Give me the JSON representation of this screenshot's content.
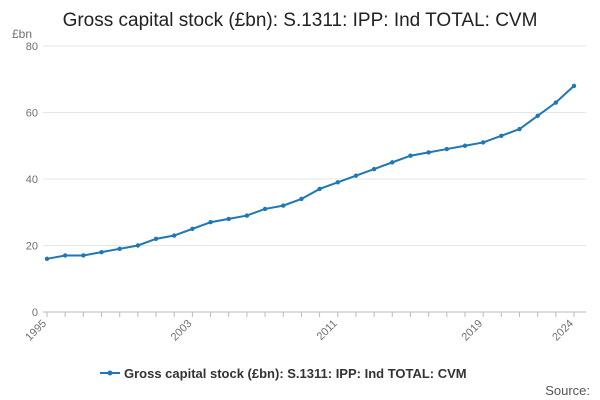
{
  "chart_data": {
    "type": "line",
    "title": "Gross capital stock (£bn): S.1311: IPP: Ind TOTAL: CVM",
    "y_unit_label": "£bn",
    "xlabel": "",
    "ylabel": "£bn",
    "ylim": [
      0,
      80
    ],
    "y_ticks": [
      "0",
      "20",
      "40",
      "60",
      "80"
    ],
    "x_tick_labels": [
      "1995",
      "2003",
      "2011",
      "2019",
      "2024"
    ],
    "x": [
      1995,
      1996,
      1997,
      1998,
      1999,
      2000,
      2001,
      2002,
      2003,
      2004,
      2005,
      2006,
      2007,
      2008,
      2009,
      2010,
      2011,
      2012,
      2013,
      2014,
      2015,
      2016,
      2017,
      2018,
      2019,
      2020,
      2021,
      2022,
      2023,
      2024
    ],
    "series": [
      {
        "name": "Gross capital stock (£bn): S.1311: IPP: Ind TOTAL: CVM",
        "color": "#1f77b4",
        "values": [
          16,
          17,
          17,
          18,
          19,
          20,
          22,
          23,
          25,
          27,
          28,
          29,
          31,
          32,
          34,
          37,
          39,
          41,
          43,
          45,
          47,
          48,
          49,
          50,
          51,
          53,
          55,
          59,
          63,
          68
        ]
      }
    ],
    "legend": "bottom-center",
    "grid": true,
    "source_label": "Source:"
  }
}
